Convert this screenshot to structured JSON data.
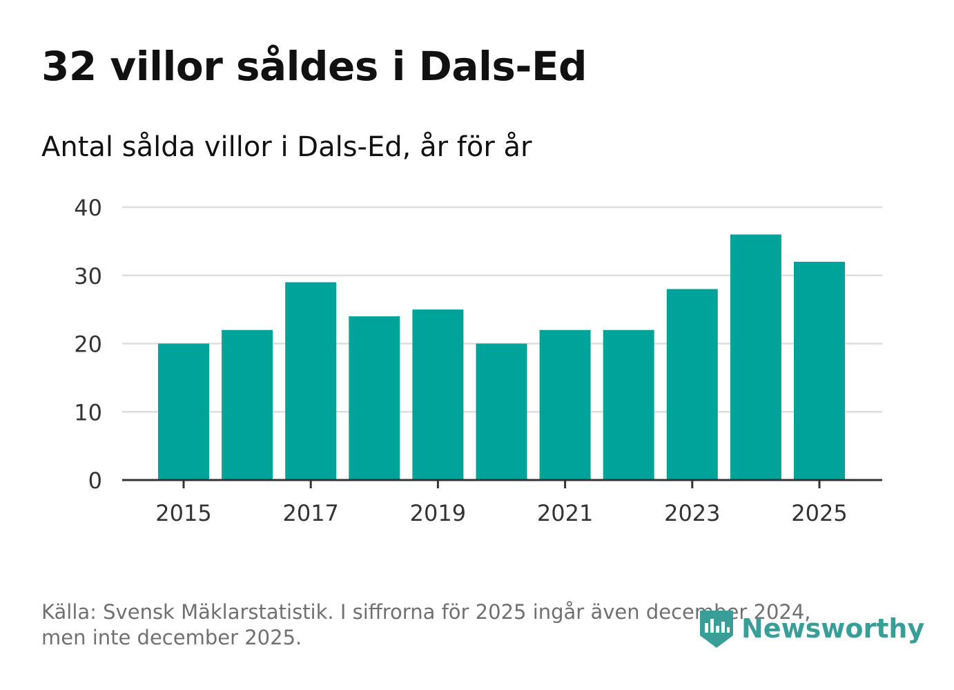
{
  "title": "32 villor såldes i Dals-Ed",
  "subtitle": "Antal sålda villor i Dals-Ed, år för år",
  "footer": {
    "line1": "Källa: Svensk Mäklarstatistik. I siffrorna för 2025 ingår även december 2024,",
    "line2": "men inte december 2025."
  },
  "logo": {
    "text": "Newsworthy",
    "icon": "newsworthy-logo-icon"
  },
  "colors": {
    "bar": "#00a39a",
    "grid": "#dddddd",
    "axis": "#333333",
    "logo": "#3a9e98"
  },
  "chart_data": {
    "type": "bar",
    "title": "32 villor såldes i Dals-Ed",
    "subtitle": "Antal sålda villor i Dals-Ed, år för år",
    "xlabel": "",
    "ylabel": "",
    "categories": [
      "2015",
      "2016",
      "2017",
      "2018",
      "2019",
      "2020",
      "2021",
      "2022",
      "2023",
      "2024",
      "2025"
    ],
    "values": [
      20,
      22,
      29,
      24,
      25,
      20,
      22,
      22,
      28,
      36,
      32
    ],
    "x_tick_labels": [
      "2015",
      "2017",
      "2019",
      "2021",
      "2023",
      "2025"
    ],
    "y_ticks": [
      0,
      10,
      20,
      30,
      40
    ],
    "ylim": [
      0,
      40
    ],
    "grid": true,
    "legend": "none"
  }
}
